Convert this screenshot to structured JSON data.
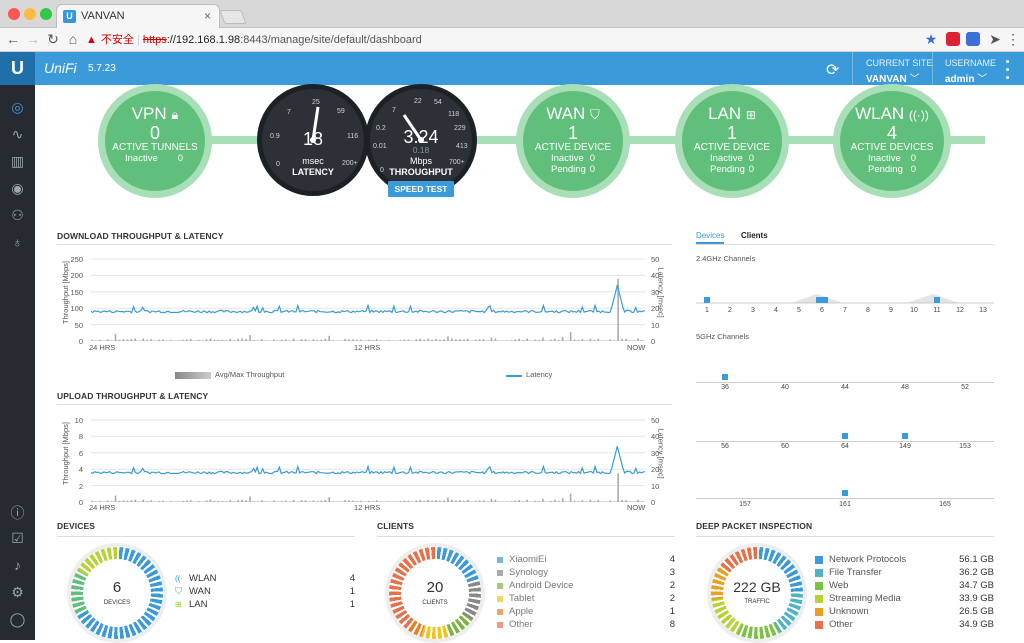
{
  "browser": {
    "tab_title": "VANVAN",
    "tab_logo": "U",
    "address_warning": "不安全",
    "address_scheme": "https",
    "address_host": "://192.168.1.98",
    "address_path": ":8443/manage/site/default/dashboard"
  },
  "header": {
    "brand": "UniFi",
    "version": "5.7.23",
    "current_site_label": "CURRENT SITE",
    "current_site_value": "VANVAN",
    "username_label": "USERNAME",
    "username_value": "admin"
  },
  "summary": {
    "vpn": {
      "title": "VPN",
      "count": "0",
      "label": "ACTIVE TUNNELS",
      "rows": [
        {
          "k": "Inactive",
          "v": "0"
        }
      ]
    },
    "latency": {
      "value": "18",
      "unit": "msec",
      "label": "LATENCY",
      "scale": [
        "0",
        "0.9",
        "7",
        "25",
        "59",
        "116",
        "200+"
      ]
    },
    "throughput": {
      "value": "3.24",
      "sub": "0.18",
      "unit": "Mbps",
      "label": "THROUGHPUT",
      "scale": [
        "0",
        "0.01",
        "0.2",
        "7",
        "22",
        "54",
        "118",
        "229",
        "413",
        "700+"
      ]
    },
    "speed_test": "SPEED TEST",
    "wan": {
      "title": "WAN",
      "count": "1",
      "label": "ACTIVE DEVICE",
      "rows": [
        {
          "k": "Inactive",
          "v": "0"
        },
        {
          "k": "Pending",
          "v": "0"
        }
      ]
    },
    "lan": {
      "title": "LAN",
      "count": "1",
      "label": "ACTIVE DEVICE",
      "rows": [
        {
          "k": "Inactive",
          "v": "0"
        },
        {
          "k": "Pending",
          "v": "0"
        }
      ]
    },
    "wlan": {
      "title": "WLAN",
      "count": "4",
      "label": "ACTIVE DEVICES",
      "rows": [
        {
          "k": "Inactive",
          "v": "0"
        },
        {
          "k": "Pending",
          "v": "0"
        }
      ]
    }
  },
  "download": {
    "title": "DOWNLOAD THROUGHPUT & LATENCY",
    "ylabel": "Throughput [Mbps]",
    "y2label": "Latency [msec]",
    "yticks": [
      "250",
      "200",
      "150",
      "100",
      "50",
      "0"
    ],
    "y2ticks": [
      "50",
      "40",
      "30",
      "20",
      "10",
      "0"
    ],
    "xticks": [
      "24 HRS",
      "12 HRS",
      "NOW"
    ],
    "legend_throughput": "Avg/Max Throughput",
    "legend_latency": "Latency"
  },
  "upload": {
    "title": "UPLOAD THROUGHPUT & LATENCY",
    "ylabel": "Throughput [Mbps]",
    "y2label": "Latency [msec]",
    "yticks": [
      "10",
      "8",
      "6",
      "4",
      "2",
      "0"
    ],
    "y2ticks": [
      "50",
      "40",
      "30",
      "20",
      "10",
      "0"
    ],
    "xticks": [
      "24 HRS",
      "12 HRS",
      "NOW"
    ]
  },
  "chart_data": [
    {
      "type": "line",
      "title": "DOWNLOAD THROUGHPUT & LATENCY",
      "xlabel": "",
      "ylabel": "Throughput [Mbps]",
      "y2label": "Latency [msec]",
      "ylim": [
        0,
        250
      ],
      "y2lim": [
        0,
        50
      ],
      "x": [
        "24 HRS",
        "12 HRS",
        "NOW"
      ],
      "series": [
        {
          "name": "Latency",
          "baseline": 18,
          "spike_at": 0.95,
          "spike": 34
        },
        {
          "name": "Avg/Max Throughput",
          "typical": 8,
          "spike_at": 0.95,
          "spike": 190
        }
      ]
    },
    {
      "type": "line",
      "title": "UPLOAD THROUGHPUT & LATENCY",
      "xlabel": "",
      "ylabel": "Throughput [Mbps]",
      "y2label": "Latency [msec]",
      "ylim": [
        0,
        10
      ],
      "y2lim": [
        0,
        50
      ],
      "x": [
        "24 HRS",
        "12 HRS",
        "NOW"
      ],
      "series": [
        {
          "name": "Latency",
          "baseline": 18,
          "spike_at": 0.95,
          "spike": 34
        },
        {
          "name": "Avg/Max Throughput",
          "typical": 0.3,
          "spike_at": 0.95,
          "spike": 3.5
        }
      ]
    }
  ],
  "channels": {
    "tab_devices": "Devices",
    "tab_clients": "Clients",
    "ghz24_label": "2.4GHz Channels",
    "ghz24_ticks": [
      "1",
      "2",
      "3",
      "4",
      "5",
      "6",
      "7",
      "8",
      "9",
      "10",
      "11",
      "12",
      "13"
    ],
    "ghz5_label": "5GHz Channels",
    "ghz5_row1": [
      "36",
      "40",
      "44",
      "48",
      "52"
    ],
    "ghz5_row2": [
      "56",
      "60",
      "64",
      "149",
      "153"
    ],
    "ghz5_row3": [
      "157",
      "161",
      "165"
    ]
  },
  "devices": {
    "title": "DEVICES",
    "total": "6",
    "caption": "DEVICES",
    "items": [
      {
        "label": "WLAN",
        "value": "4"
      },
      {
        "label": "WAN",
        "value": "1"
      },
      {
        "label": "LAN",
        "value": "1"
      }
    ]
  },
  "clients": {
    "title": "CLIENTS",
    "total": "20",
    "caption": "CLIENTS",
    "items": [
      {
        "label": "XiaomiEi",
        "value": "4",
        "color": "#3b9ad9"
      },
      {
        "label": "Synology",
        "value": "3",
        "color": "#888888"
      },
      {
        "label": "Android Device",
        "value": "2",
        "color": "#7cb342"
      },
      {
        "label": "Tablet",
        "value": "2",
        "color": "#f0c419"
      },
      {
        "label": "Apple",
        "value": "1",
        "color": "#e67e22"
      },
      {
        "label": "Other",
        "value": "8",
        "color": "#e8704a"
      }
    ]
  },
  "dpi": {
    "title": "DEEP PACKET INSPECTION",
    "total": "222 GB",
    "caption": "TRAFFIC",
    "items": [
      {
        "label": "Network Protocols",
        "value": "56.1 GB",
        "color": "#3b9ad9"
      },
      {
        "label": "File Transfer",
        "value": "36.2 GB",
        "color": "#4fb3c4"
      },
      {
        "label": "Web",
        "value": "34.7 GB",
        "color": "#7cc242"
      },
      {
        "label": "Streaming Media",
        "value": "33.9 GB",
        "color": "#b5d334"
      },
      {
        "label": "Unknown",
        "value": "26.5 GB",
        "color": "#e8a020"
      },
      {
        "label": "Other",
        "value": "34.9 GB",
        "color": "#e8704a"
      }
    ]
  }
}
